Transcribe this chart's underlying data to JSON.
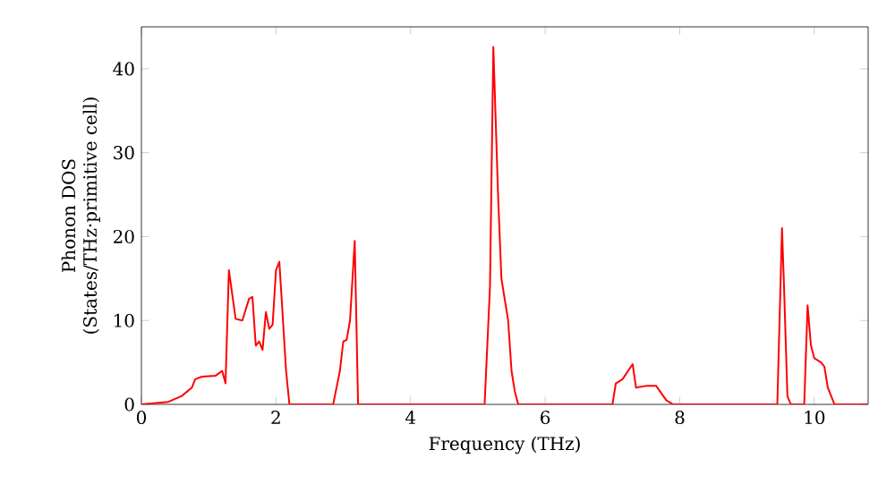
{
  "chart_data": {
    "type": "line",
    "xlabel": "Frequency (THz)",
    "ylabel": "Phonon DOS\n(States/THz·primitive cell)",
    "xlim": [
      0,
      10.8
    ],
    "ylim": [
      0,
      45
    ],
    "xticks": [
      0,
      2,
      4,
      6,
      8,
      10
    ],
    "yticks": [
      0,
      10,
      20,
      30,
      40
    ],
    "grid": false,
    "line_style": "solid",
    "series": [
      {
        "color": "#ff0000",
        "x": [
          0,
          0.4,
          0.6,
          0.75,
          0.8,
          0.9,
          1.1,
          1.2,
          1.25,
          1.3,
          1.4,
          1.5,
          1.6,
          1.65,
          1.7,
          1.75,
          1.8,
          1.85,
          1.9,
          1.95,
          2.0,
          2.05,
          2.15,
          2.2,
          2.85,
          2.95,
          3.0,
          3.05,
          3.1,
          3.17,
          3.22,
          5.1,
          5.18,
          5.23,
          5.3,
          5.35,
          5.45,
          5.5,
          5.55,
          5.6,
          7.0,
          7.05,
          7.15,
          7.3,
          7.35,
          7.5,
          7.65,
          7.8,
          7.9,
          9.45,
          9.52,
          9.55,
          9.6,
          9.65,
          9.85,
          9.9,
          9.95,
          10.0,
          10.1,
          10.15,
          10.2,
          10.3,
          10.8
        ],
        "values": [
          0,
          0.3,
          1,
          2,
          3,
          3.3,
          3.4,
          4,
          2.5,
          16,
          10.2,
          10,
          12.6,
          12.8,
          7,
          7.5,
          6.5,
          11,
          9,
          9.5,
          16,
          17,
          4,
          0,
          0,
          4,
          7.5,
          7.7,
          10,
          19.5,
          0,
          0,
          14,
          42.6,
          25,
          15,
          10,
          4,
          1.5,
          0,
          0,
          2.5,
          3,
          4.8,
          2,
          2.2,
          2.2,
          0.5,
          0,
          0,
          21,
          14,
          1,
          0,
          0,
          11.8,
          7,
          5.5,
          5,
          4.5,
          2,
          0,
          0
        ]
      }
    ]
  }
}
